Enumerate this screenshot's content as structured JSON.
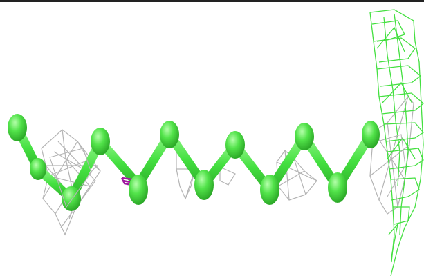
{
  "scene": {
    "background": "#ffffff",
    "atom_color": "#44e040",
    "atom_highlight": "#a8ff9c",
    "bond_color": "#44e040",
    "density_mesh_color": "#b4b4b4",
    "ligand_mesh_color": "#44e040",
    "marker_color": "#a01aa0"
  }
}
